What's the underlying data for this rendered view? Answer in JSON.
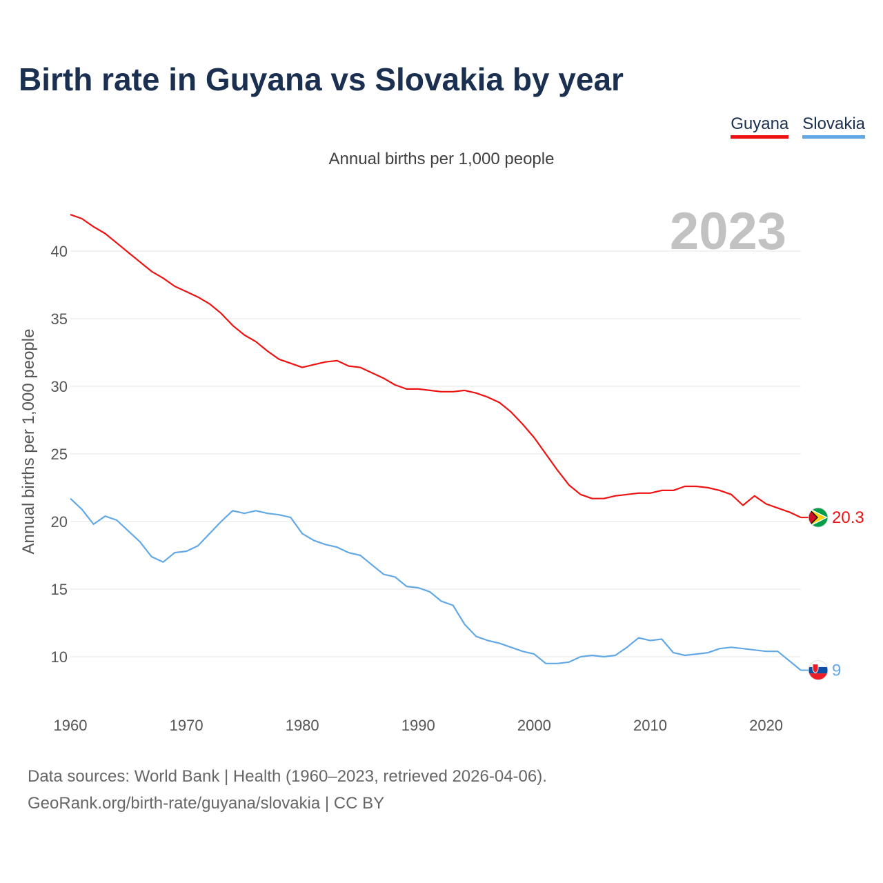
{
  "title": "Birth rate in Guyana vs Slovakia by year",
  "subtitle": "Annual births per 1,000 people",
  "legend": [
    {
      "label": "Guyana",
      "color": "#ee1111"
    },
    {
      "label": "Slovakia",
      "color": "#62a8e5"
    }
  ],
  "footer": {
    "line1": "Data sources: World Bank | Health (1960–2023, retrieved 2026-04-06).",
    "line2": "GeoRank.org/birth-rate/guyana/slovakia | CC BY"
  },
  "chart_data": {
    "type": "line",
    "title": "Birth rate in Guyana vs Slovakia by year",
    "xlabel": "",
    "ylabel": "Annual births per 1,000 people",
    "xlim": [
      1960,
      2023
    ],
    "ylim": [
      7,
      44
    ],
    "yticks": [
      10,
      15,
      20,
      25,
      30,
      35,
      40
    ],
    "xticks": [
      1960,
      1970,
      1980,
      1990,
      2000,
      2010,
      2020
    ],
    "year_label": "2023",
    "x": [
      1960,
      1961,
      1962,
      1963,
      1964,
      1965,
      1966,
      1967,
      1968,
      1969,
      1970,
      1971,
      1972,
      1973,
      1974,
      1975,
      1976,
      1977,
      1978,
      1979,
      1980,
      1981,
      1982,
      1983,
      1984,
      1985,
      1986,
      1987,
      1988,
      1989,
      1990,
      1991,
      1992,
      1993,
      1994,
      1995,
      1996,
      1997,
      1998,
      1999,
      2000,
      2001,
      2002,
      2003,
      2004,
      2005,
      2006,
      2007,
      2008,
      2009,
      2010,
      2011,
      2012,
      2013,
      2014,
      2015,
      2016,
      2017,
      2018,
      2019,
      2020,
      2021,
      2022,
      2023
    ],
    "series": [
      {
        "name": "Guyana",
        "color": "#ee1111",
        "end_label": "20.3",
        "values": [
          42.7,
          42.4,
          41.8,
          41.3,
          40.6,
          39.9,
          39.2,
          38.5,
          38.0,
          37.4,
          37.0,
          36.6,
          36.1,
          35.4,
          34.5,
          33.8,
          33.3,
          32.6,
          32.0,
          31.7,
          31.4,
          31.6,
          31.8,
          31.9,
          31.5,
          31.4,
          31.0,
          30.6,
          30.1,
          29.8,
          29.8,
          29.7,
          29.6,
          29.6,
          29.7,
          29.5,
          29.2,
          28.8,
          28.1,
          27.2,
          26.2,
          25.0,
          23.8,
          22.7,
          22.0,
          21.7,
          21.7,
          21.9,
          22.0,
          22.1,
          22.1,
          22.3,
          22.3,
          22.6,
          22.6,
          22.5,
          22.3,
          22.0,
          21.2,
          21.9,
          21.3,
          21.0,
          20.7,
          20.3
        ]
      },
      {
        "name": "Slovakia",
        "color": "#62a8e5",
        "end_label": "9",
        "values": [
          21.7,
          20.9,
          19.8,
          20.4,
          20.1,
          19.3,
          18.5,
          17.4,
          17.0,
          17.7,
          17.8,
          18.2,
          19.1,
          20.0,
          20.8,
          20.6,
          20.8,
          20.6,
          20.5,
          20.3,
          19.1,
          18.6,
          18.3,
          18.1,
          17.7,
          17.5,
          16.8,
          16.1,
          15.9,
          15.2,
          15.1,
          14.8,
          14.1,
          13.8,
          12.4,
          11.5,
          11.2,
          11.0,
          10.7,
          10.4,
          10.2,
          9.5,
          9.5,
          9.6,
          10.0,
          10.1,
          10.0,
          10.1,
          10.7,
          11.4,
          11.2,
          11.3,
          10.3,
          10.1,
          10.2,
          10.3,
          10.6,
          10.7,
          10.6,
          10.5,
          10.4,
          10.4,
          9.7,
          9.0
        ]
      }
    ]
  }
}
